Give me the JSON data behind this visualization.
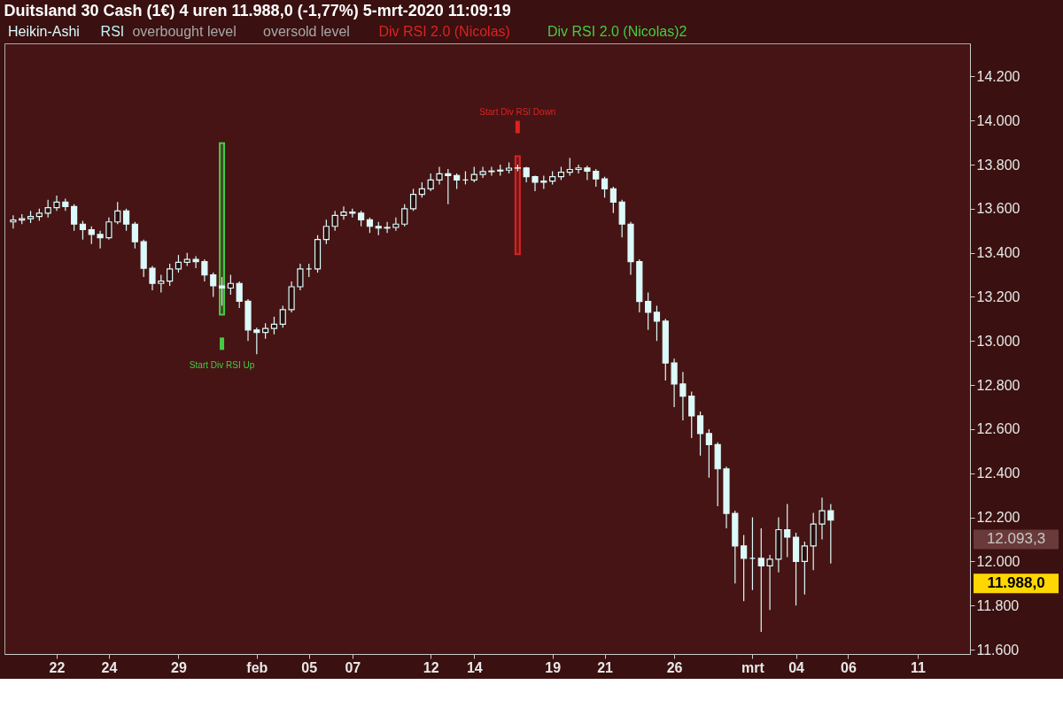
{
  "chart_data": {
    "type": "candlestick",
    "title": "Duitsland 30 Cash (1€)   4 uren   11.988,0 (-1,77%)   5-mrt-2020 11:09:19",
    "categories": [
      null,
      null,
      null,
      null,
      null,
      "22",
      null,
      null,
      null,
      null,
      null,
      "24",
      null,
      null,
      null,
      null,
      null,
      null,
      null,
      "29",
      null,
      null,
      null,
      null,
      null,
      null,
      null,
      null,
      "feb",
      null,
      null,
      null,
      null,
      null,
      "05",
      null,
      null,
      null,
      null,
      "07",
      null,
      null,
      null,
      null,
      null,
      null,
      null,
      null,
      "12",
      null,
      null,
      null,
      null,
      "14",
      null,
      null,
      null,
      null,
      null,
      null,
      null,
      null,
      "19",
      null,
      null,
      null,
      null,
      null,
      "21",
      null,
      null,
      null,
      null,
      null,
      null,
      null,
      "26",
      null,
      null,
      null,
      null,
      null,
      null,
      null,
      null,
      "mrt",
      null,
      null,
      null,
      null,
      "04",
      null,
      null,
      null,
      null,
      null,
      "06",
      null,
      null,
      null,
      null,
      null,
      null,
      null,
      "11",
      null,
      null,
      null,
      null,
      null
    ],
    "ylim": [
      11580,
      14350
    ],
    "yticks": [
      {
        "value": 11600,
        "label": "11.600"
      },
      {
        "value": 11800,
        "label": "11.800"
      },
      {
        "value": 12000,
        "label": "12.000"
      },
      {
        "value": 12200,
        "label": "12.200"
      },
      {
        "value": 12400,
        "label": "12.400"
      },
      {
        "value": 12600,
        "label": "12.600"
      },
      {
        "value": 12800,
        "label": "12.800"
      },
      {
        "value": 13000,
        "label": "13.000"
      },
      {
        "value": 13200,
        "label": "13.200"
      },
      {
        "value": 13400,
        "label": "13.400"
      },
      {
        "value": 13600,
        "label": "13.600"
      },
      {
        "value": 13800,
        "label": "13.800"
      },
      {
        "value": 14000,
        "label": "14.000"
      },
      {
        "value": 14200,
        "label": "14.200"
      }
    ],
    "legend": "top left",
    "grid": false,
    "series": [
      {
        "name": "Heikin-Ashi",
        "color": "#dcfafa",
        "ohlc": [
          [
            13540,
            13570,
            13510,
            13549
          ],
          [
            13549,
            13575,
            13530,
            13555
          ],
          [
            13555,
            13590,
            13535,
            13565
          ],
          [
            13565,
            13600,
            13545,
            13580
          ],
          [
            13580,
            13640,
            13560,
            13605
          ],
          [
            13605,
            13660,
            13590,
            13630
          ],
          [
            13630,
            13645,
            13590,
            13610
          ],
          [
            13610,
            13620,
            13500,
            13530
          ],
          [
            13530,
            13545,
            13460,
            13505
          ],
          [
            13505,
            13520,
            13440,
            13483
          ],
          [
            13483,
            13500,
            13420,
            13468
          ],
          [
            13468,
            13560,
            13460,
            13540
          ],
          [
            13540,
            13630,
            13530,
            13590
          ],
          [
            13590,
            13600,
            13500,
            13530
          ],
          [
            13530,
            13540,
            13420,
            13450
          ],
          [
            13450,
            13460,
            13290,
            13330
          ],
          [
            13330,
            13340,
            13230,
            13261
          ],
          [
            13261,
            13300,
            13220,
            13272
          ],
          [
            13272,
            13350,
            13250,
            13327
          ],
          [
            13327,
            13390,
            13310,
            13357
          ],
          [
            13357,
            13400,
            13340,
            13370
          ],
          [
            13370,
            13385,
            13330,
            13360
          ],
          [
            13360,
            13370,
            13270,
            13300
          ],
          [
            13300,
            13310,
            13200,
            13250
          ],
          [
            13250,
            13290,
            13160,
            13240
          ],
          [
            13240,
            13300,
            13210,
            13261
          ],
          [
            13261,
            13270,
            13150,
            13180
          ],
          [
            13180,
            13190,
            13000,
            13050
          ],
          [
            13050,
            13060,
            12940,
            13039
          ],
          [
            13039,
            13080,
            13010,
            13057
          ],
          [
            13057,
            13110,
            13030,
            13076
          ],
          [
            13076,
            13160,
            13060,
            13142
          ],
          [
            13142,
            13270,
            13130,
            13246
          ],
          [
            13246,
            13350,
            13230,
            13327
          ],
          [
            13327,
            13350,
            13290,
            13327
          ],
          [
            13327,
            13480,
            13310,
            13460
          ],
          [
            13460,
            13550,
            13440,
            13520
          ],
          [
            13520,
            13590,
            13500,
            13570
          ],
          [
            13570,
            13610,
            13550,
            13585
          ],
          [
            13585,
            13600,
            13560,
            13580
          ],
          [
            13580,
            13590,
            13520,
            13550
          ],
          [
            13550,
            13560,
            13490,
            13520
          ],
          [
            13520,
            13540,
            13480,
            13512
          ],
          [
            13512,
            13540,
            13490,
            13515
          ],
          [
            13515,
            13560,
            13500,
            13530
          ],
          [
            13530,
            13620,
            13520,
            13600
          ],
          [
            13600,
            13690,
            13590,
            13665
          ],
          [
            13665,
            13720,
            13650,
            13690
          ],
          [
            13690,
            13760,
            13680,
            13730
          ],
          [
            13730,
            13790,
            13710,
            13758
          ],
          [
            13758,
            13780,
            13620,
            13750
          ],
          [
            13750,
            13760,
            13690,
            13730
          ],
          [
            13730,
            13770,
            13710,
            13730
          ],
          [
            13730,
            13790,
            13720,
            13755
          ],
          [
            13755,
            13790,
            13740,
            13768
          ],
          [
            13768,
            13790,
            13750,
            13771
          ],
          [
            13771,
            13800,
            13750,
            13775
          ],
          [
            13775,
            13810,
            13760,
            13784
          ],
          [
            13784,
            13800,
            13770,
            13785
          ],
          [
            13785,
            13790,
            13720,
            13745
          ],
          [
            13745,
            13750,
            13680,
            13720
          ],
          [
            13720,
            13750,
            13690,
            13725
          ],
          [
            13725,
            13770,
            13710,
            13745
          ],
          [
            13745,
            13790,
            13730,
            13765
          ],
          [
            13765,
            13830,
            13750,
            13778
          ],
          [
            13778,
            13800,
            13760,
            13785
          ],
          [
            13785,
            13795,
            13730,
            13770
          ],
          [
            13770,
            13780,
            13700,
            13735
          ],
          [
            13735,
            13745,
            13650,
            13690
          ],
          [
            13690,
            13700,
            13580,
            13630
          ],
          [
            13630,
            13640,
            13470,
            13530
          ],
          [
            13530,
            13540,
            13300,
            13360
          ],
          [
            13360,
            13370,
            13130,
            13179
          ],
          [
            13179,
            13220,
            13050,
            13130
          ],
          [
            13130,
            13160,
            13000,
            13090
          ],
          [
            13090,
            13100,
            12820,
            12900
          ],
          [
            12900,
            12920,
            12700,
            12805
          ],
          [
            12805,
            12860,
            12640,
            12750
          ],
          [
            12750,
            12770,
            12560,
            12660
          ],
          [
            12660,
            12680,
            12480,
            12580
          ],
          [
            12580,
            12600,
            12380,
            12530
          ],
          [
            12530,
            12540,
            12250,
            12420
          ],
          [
            12420,
            12430,
            12150,
            12218
          ],
          [
            12218,
            12230,
            11900,
            12070
          ],
          [
            12070,
            12120,
            11820,
            12014
          ],
          [
            12014,
            12200,
            11870,
            12014
          ],
          [
            12014,
            12150,
            11680,
            11980
          ],
          [
            11980,
            12030,
            11780,
            12010
          ],
          [
            12010,
            12200,
            11950,
            12144
          ],
          [
            12144,
            12260,
            12020,
            12110
          ],
          [
            12110,
            12130,
            11800,
            12000
          ],
          [
            12000,
            12090,
            11850,
            12070
          ],
          [
            12070,
            12220,
            11960,
            12170
          ],
          [
            12170,
            12290,
            12100,
            12230
          ],
          [
            12230,
            12260,
            11990,
            12188
          ],
          null,
          null,
          null,
          null,
          null,
          null,
          null,
          null,
          null,
          null,
          null,
          null,
          null,
          null,
          null
        ]
      },
      {
        "name": "RSI",
        "type": "line",
        "color": "#bff5f5",
        "values": [
          null,
          null,
          null,
          null,
          null,
          null,
          null,
          null,
          null,
          null,
          null,
          null,
          null,
          null,
          null,
          null,
          null,
          null,
          null,
          null,
          null,
          null,
          null,
          null,
          null,
          null,
          null,
          null,
          null,
          null,
          null,
          null,
          null,
          null,
          null,
          null,
          null,
          null,
          null,
          null,
          null,
          null,
          null,
          null,
          null,
          null,
          null,
          null,
          null,
          null,
          null,
          null,
          null,
          null,
          null,
          null,
          null,
          null,
          null,
          null,
          null,
          null,
          null,
          null,
          null,
          null,
          null,
          null,
          null,
          null,
          null,
          null,
          null,
          null,
          null,
          null,
          null,
          null,
          null,
          null,
          null,
          null,
          null,
          null,
          null,
          null,
          null,
          null,
          null,
          null,
          null,
          null,
          null,
          null,
          null,
          null,
          null,
          null,
          null,
          null,
          null,
          null,
          null,
          null,
          null,
          null,
          null,
          null,
          null,
          null
        ]
      },
      {
        "name": "overbought level",
        "type": "line",
        "color": "#a8a8a8",
        "values": [
          null,
          null,
          null,
          null,
          null,
          null,
          null,
          null,
          null,
          null,
          null,
          null,
          null,
          null,
          null,
          null,
          null,
          null,
          null,
          null,
          null,
          null,
          null,
          null,
          null,
          null,
          null,
          null,
          null,
          null,
          null,
          null,
          null,
          null,
          null,
          null,
          null,
          null,
          null,
          null,
          null,
          null,
          null,
          null,
          null,
          null,
          null,
          null,
          null,
          null,
          null,
          null,
          null,
          null,
          null,
          null,
          null,
          null,
          null,
          null,
          null,
          null,
          null,
          null,
          null,
          null,
          null,
          null,
          null,
          null,
          null,
          null,
          null,
          null,
          null,
          null,
          null,
          null,
          null,
          null,
          null,
          null,
          null,
          null,
          null,
          null,
          null,
          null,
          null,
          null,
          null,
          null,
          null,
          null,
          null,
          null,
          null,
          null,
          null,
          null,
          null,
          null,
          null,
          null,
          null,
          null,
          null,
          null,
          null,
          null
        ]
      },
      {
        "name": "oversold level",
        "type": "line",
        "color": "#a8a8a8",
        "values": [
          null,
          null,
          null,
          null,
          null,
          null,
          null,
          null,
          null,
          null,
          null,
          null,
          null,
          null,
          null,
          null,
          null,
          null,
          null,
          null,
          null,
          null,
          null,
          null,
          null,
          null,
          null,
          null,
          null,
          null,
          null,
          null,
          null,
          null,
          null,
          null,
          null,
          null,
          null,
          null,
          null,
          null,
          null,
          null,
          null,
          null,
          null,
          null,
          null,
          null,
          null,
          null,
          null,
          null,
          null,
          null,
          null,
          null,
          null,
          null,
          null,
          null,
          null,
          null,
          null,
          null,
          null,
          null,
          null,
          null,
          null,
          null,
          null,
          null,
          null,
          null,
          null,
          null,
          null,
          null,
          null,
          null,
          null,
          null,
          null,
          null,
          null,
          null,
          null,
          null,
          null,
          null,
          null,
          null,
          null,
          null,
          null,
          null,
          null,
          null,
          null,
          null,
          null,
          null,
          null,
          null,
          null,
          null,
          null,
          null
        ]
      },
      {
        "name": "Div RSI 2.0 (Nicolas)",
        "type": "bar",
        "color": "#dd2222",
        "base": [
          null,
          null,
          null,
          null,
          null,
          null,
          null,
          null,
          null,
          null,
          null,
          null,
          null,
          null,
          null,
          null,
          null,
          null,
          null,
          null,
          null,
          null,
          null,
          null,
          null,
          null,
          null,
          null,
          null,
          null,
          null,
          null,
          null,
          null,
          null,
          null,
          null,
          null,
          null,
          null,
          null,
          null,
          null,
          null,
          null,
          null,
          null,
          null,
          null,
          null,
          null,
          null,
          null,
          null,
          null,
          null,
          null,
          null,
          13394,
          null,
          null,
          null,
          null,
          null,
          null,
          null,
          null,
          null,
          null,
          null,
          null,
          null,
          null,
          null,
          null,
          null,
          null,
          null,
          null,
          null,
          null,
          null,
          null,
          null,
          null,
          null,
          null,
          null,
          null,
          null,
          null,
          null,
          null,
          null,
          null,
          null,
          null,
          null,
          null,
          null,
          null,
          null,
          null,
          null,
          null,
          null,
          null,
          null,
          null,
          null
        ],
        "values": [
          null,
          null,
          null,
          null,
          null,
          null,
          null,
          null,
          null,
          null,
          null,
          null,
          null,
          null,
          null,
          null,
          null,
          null,
          null,
          null,
          null,
          null,
          null,
          null,
          null,
          null,
          null,
          null,
          null,
          null,
          null,
          null,
          null,
          null,
          null,
          null,
          null,
          null,
          null,
          null,
          null,
          null,
          null,
          null,
          null,
          null,
          null,
          null,
          null,
          null,
          null,
          null,
          null,
          null,
          null,
          null,
          null,
          null,
          444,
          null,
          null,
          null,
          null,
          null,
          null,
          null,
          null,
          null,
          null,
          null,
          null,
          null,
          null,
          null,
          null,
          null,
          null,
          null,
          null,
          null,
          null,
          null,
          null,
          null,
          null,
          null,
          null,
          null,
          null,
          null,
          null,
          null,
          null,
          null,
          null,
          null,
          null,
          null,
          null,
          null,
          null,
          null,
          null,
          null,
          null,
          null,
          null,
          null,
          null,
          null
        ]
      },
      {
        "name": "Div RSI 2.0 (Nicolas)2",
        "type": "bar",
        "color": "#44cc44",
        "base": [
          null,
          null,
          null,
          null,
          null,
          null,
          null,
          null,
          null,
          null,
          null,
          null,
          null,
          null,
          null,
          null,
          null,
          null,
          null,
          null,
          null,
          null,
          null,
          null,
          13120,
          null,
          null,
          null,
          null,
          null,
          null,
          null,
          null,
          null,
          null,
          null,
          null,
          null,
          null,
          null,
          null,
          null,
          null,
          null,
          null,
          null,
          null,
          null,
          null,
          null,
          null,
          null,
          null,
          null,
          null,
          null,
          null,
          null,
          null,
          null,
          null,
          null,
          null,
          null,
          null,
          null,
          null,
          null,
          null,
          null,
          null,
          null,
          null,
          null,
          null,
          null,
          null,
          null,
          null,
          null,
          null,
          null,
          null,
          null,
          null,
          null,
          null,
          null,
          null,
          null,
          null,
          null,
          null,
          null,
          null,
          null,
          null,
          null,
          null,
          null,
          null,
          null,
          null,
          null,
          null,
          null,
          null,
          null,
          null,
          null
        ],
        "values": [
          null,
          null,
          null,
          null,
          null,
          null,
          null,
          null,
          null,
          null,
          null,
          null,
          null,
          null,
          null,
          null,
          null,
          null,
          null,
          null,
          null,
          null,
          null,
          null,
          777,
          null,
          null,
          null,
          null,
          null,
          null,
          null,
          null,
          null,
          null,
          null,
          null,
          null,
          null,
          null,
          null,
          null,
          null,
          null,
          null,
          null,
          null,
          null,
          null,
          null,
          null,
          null,
          null,
          null,
          null,
          null,
          null,
          null,
          null,
          null,
          null,
          null,
          null,
          null,
          null,
          null,
          null,
          null,
          null,
          null,
          null,
          null,
          null,
          null,
          null,
          null,
          null,
          null,
          null,
          null,
          null,
          null,
          null,
          null,
          null,
          null,
          null,
          null,
          null,
          null,
          null,
          null,
          null,
          null,
          null,
          null,
          null,
          null,
          null,
          null,
          null,
          null,
          null,
          null,
          null,
          null,
          null,
          null,
          null,
          null
        ]
      }
    ],
    "annotations": [
      "Start Div RSI Down",
      "Start Div RSI Up",
      "12.093,3",
      "11.988,0"
    ]
  }
}
